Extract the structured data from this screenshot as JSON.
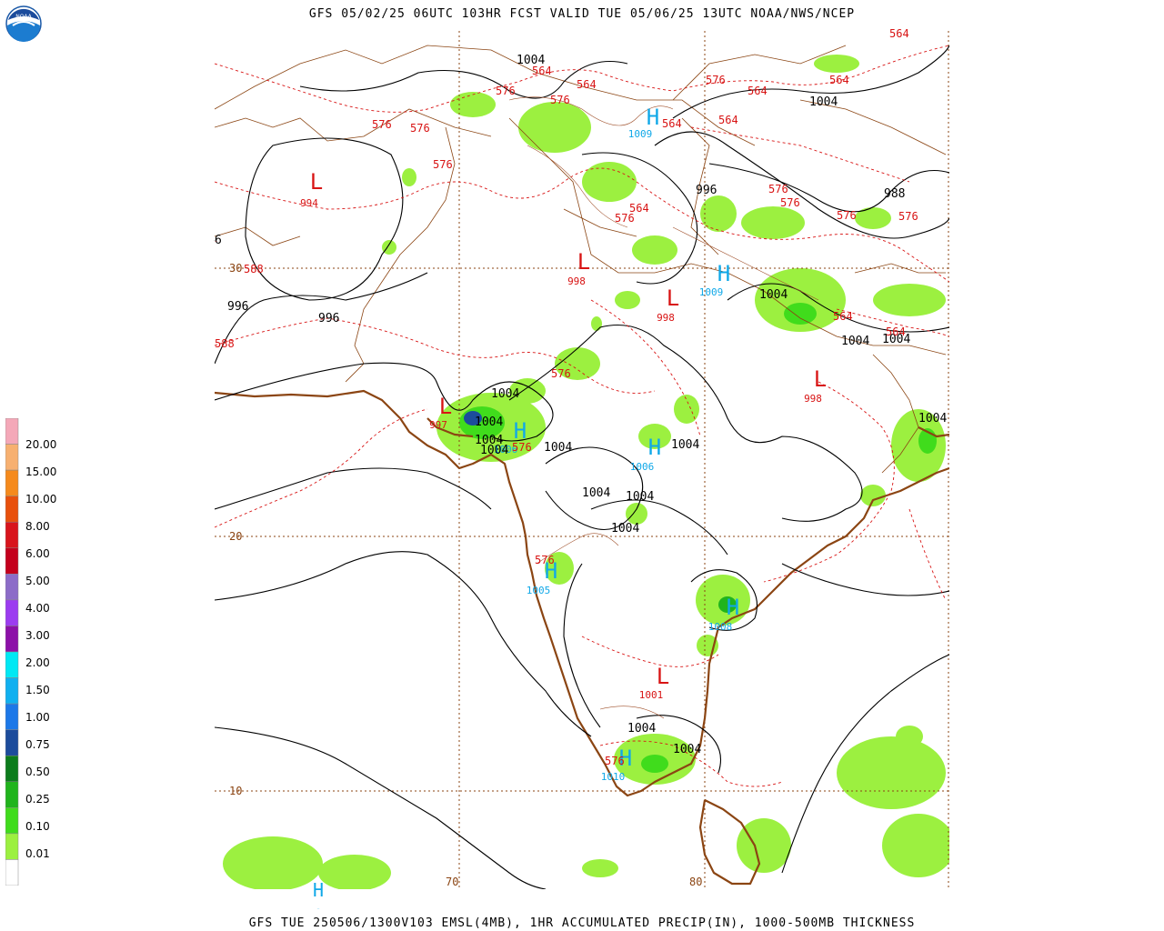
{
  "header": {
    "title": "GFS 05/02/25 06UTC 103HR FCST VALID TUE 05/06/25 13UTC NOAA/NWS/NCEP",
    "footer": "GFS TUE 250506/1300V103 EMSL(4MB), 1HR ACCUMULATED PRECIP(IN), 1000-500MB THICKNESS",
    "logo_text": "NOAA"
  },
  "legend": {
    "labels": [
      "20.00",
      "15.00",
      "10.00",
      "8.00",
      "6.00",
      "5.00",
      "4.00",
      "3.00",
      "2.00",
      "1.50",
      "1.00",
      "0.75",
      "0.50",
      "0.25",
      "0.10",
      "0.01"
    ],
    "colors": [
      "#f4a8b8",
      "#f7b070",
      "#f58a1c",
      "#e8500c",
      "#d8141c",
      "#c4001c",
      "#8c6cc8",
      "#9c3cf0",
      "#8c10a8",
      "#00e8f4",
      "#10b0f0",
      "#1c78e8",
      "#1c4c9c",
      "#0c7c1c",
      "#20b41c",
      "#40dc1c",
      "#9cf040",
      "#ffffff"
    ]
  },
  "grid": {
    "lat_labels": [
      "30",
      "20",
      "10"
    ],
    "lon_labels": [
      "70",
      "80"
    ]
  },
  "pressure_centers": [
    {
      "type": "L",
      "value": "994"
    },
    {
      "type": "L",
      "value": "998"
    },
    {
      "type": "L",
      "value": "998"
    },
    {
      "type": "L",
      "value": "998"
    },
    {
      "type": "L",
      "value": "997"
    },
    {
      "type": "L",
      "value": "1001"
    },
    {
      "type": "H",
      "value": "1009"
    },
    {
      "type": "H",
      "value": "1009"
    },
    {
      "type": "H",
      "value": "1006"
    },
    {
      "type": "H",
      "value": "1006"
    },
    {
      "type": "H",
      "value": "1005"
    },
    {
      "type": "H",
      "value": "1008"
    },
    {
      "type": "H",
      "value": "1010"
    },
    {
      "type": "H",
      "value": "1005"
    }
  ],
  "isobar_labels": [
    "1004",
    "1004",
    "996",
    "996",
    "996",
    "6",
    "1004",
    "1004",
    "1004",
    "1004",
    "1004",
    "1004",
    "1004",
    "1004",
    "1004",
    "1004",
    "1004",
    "1004",
    "1004",
    "1004",
    "1004",
    "1004",
    "1004",
    "988"
  ],
  "thickness_labels": [
    "564",
    "564",
    "564",
    "564",
    "564",
    "564",
    "564",
    "564",
    "564",
    "564",
    "576",
    "576",
    "576",
    "576",
    "576",
    "576",
    "576",
    "576",
    "576",
    "576",
    "576",
    "576",
    "576",
    "576",
    "576",
    "576",
    "576",
    "588",
    "588"
  ]
}
